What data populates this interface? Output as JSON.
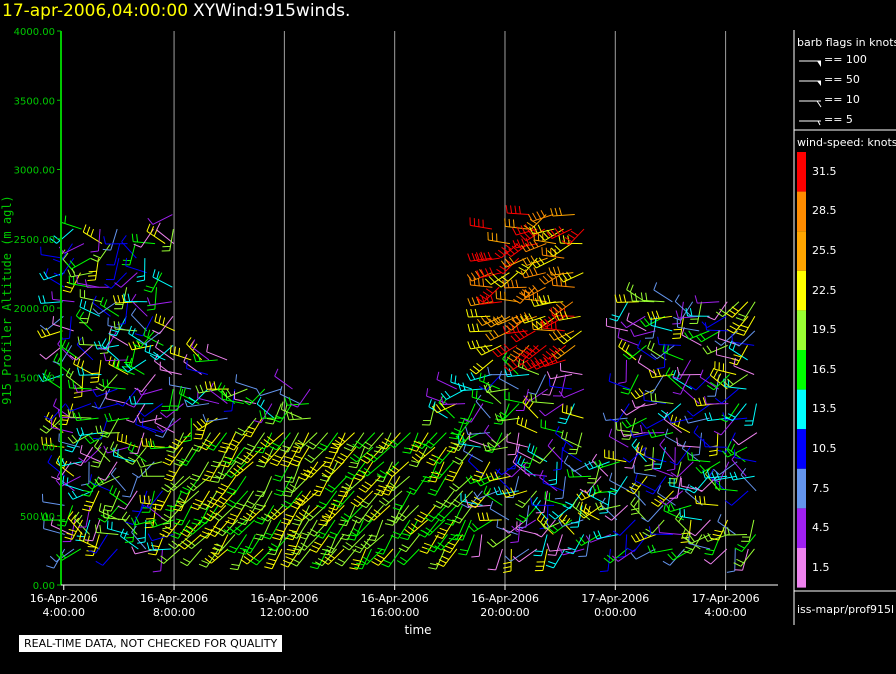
{
  "title": {
    "datetime": "17-apr-2006,04:00:00",
    "name": "XYWind:915winds."
  },
  "legend": {
    "flags_heading": "barb flags in knots",
    "flags": [
      "== 100",
      "== 50",
      "== 10",
      "== 5"
    ],
    "speed_heading": "wind-speed: knots",
    "source": "iss-mapr/prof915l"
  },
  "colors": {
    "axis": "#00c800",
    "grid": "#a0a0a0",
    "title_time": "#ffff00",
    "speed_scale": [
      "#ee82ee",
      "#a020f0",
      "#6495ed",
      "#0000ff",
      "#00ffff",
      "#00ff00",
      "#99ff33",
      "#ffff00",
      "#ffa500",
      "#ff8c00",
      "#ff0000"
    ]
  },
  "quality_note": "REAL-TIME DATA, NOT CHECKED FOR QUALITY",
  "chart_data": {
    "type": "wind-barb time-height plot",
    "ylabel": "915 Profiler Altitude (m agl)",
    "xlabel": "time",
    "ylim": [
      0,
      4000
    ],
    "y_ticks": [
      "0.00",
      "500.00",
      "1000.00",
      "1500.00",
      "2000.00",
      "2500.00",
      "3000.00",
      "3500.00",
      "4000.00"
    ],
    "xlim_hours": [
      3.9,
      29.9
    ],
    "x_ticks": [
      {
        "hour": 4,
        "date": "16-Apr-2006",
        "time": "4:00:00"
      },
      {
        "hour": 8,
        "date": "16-Apr-2006",
        "time": "8:00:00"
      },
      {
        "hour": 12,
        "date": "16-Apr-2006",
        "time": "12:00:00"
      },
      {
        "hour": 16,
        "date": "16-Apr-2006",
        "time": "16:00:00"
      },
      {
        "hour": 20,
        "date": "16-Apr-2006",
        "time": "20:00:00"
      },
      {
        "hour": 24,
        "date": "17-Apr-2006",
        "time": "0:00:00"
      },
      {
        "hour": 28,
        "date": "17-Apr-2006",
        "time": "4:00:00"
      }
    ],
    "gridlines_x": true,
    "speed_scale_knots": [
      "1.5",
      "4.5",
      "7.5",
      "10.5",
      "13.5",
      "16.5",
      "19.5",
      "22.5",
      "25.5",
      "28.5",
      "31.5"
    ]
  }
}
